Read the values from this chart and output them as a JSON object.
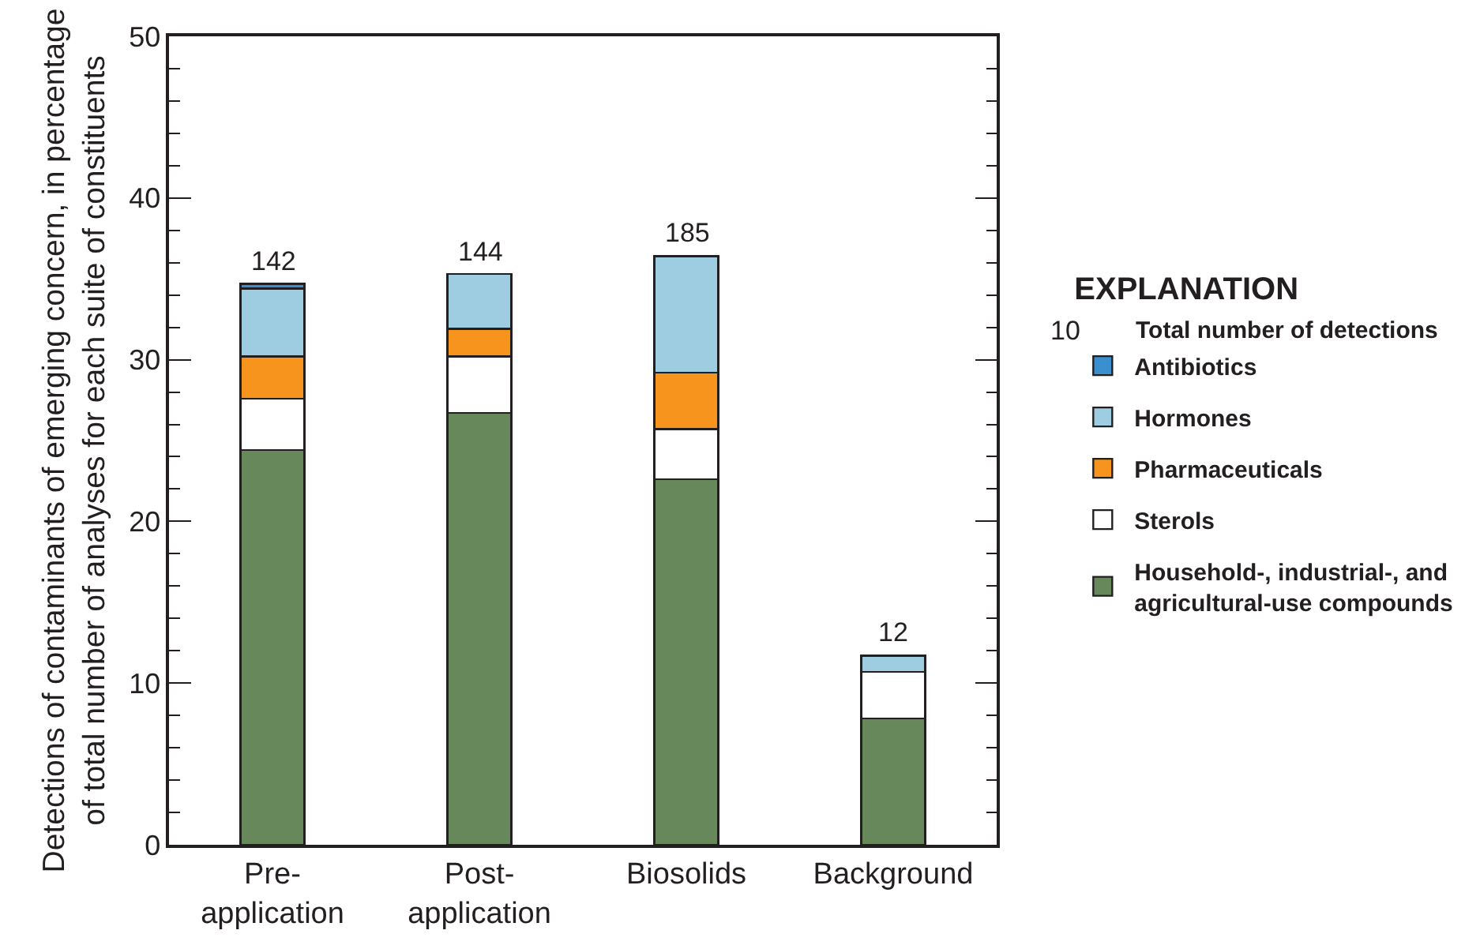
{
  "chart_data": {
    "type": "bar",
    "stacked": true,
    "categories": [
      "Pre-application",
      "Post-application",
      "Biosolids",
      "Background"
    ],
    "series": [
      {
        "name": "Household-, industrial-, and agricultural-use compounds",
        "color": "#66885a",
        "values": [
          24.4,
          26.7,
          22.6,
          7.8
        ]
      },
      {
        "name": "Sterols",
        "color": "#ffffff",
        "values": [
          3.2,
          3.5,
          3.1,
          2.9
        ]
      },
      {
        "name": "Pharmaceuticals",
        "color": "#f7941d",
        "values": [
          2.6,
          1.7,
          3.5,
          null
        ]
      },
      {
        "name": "Hormones",
        "color": "#9ecce0",
        "values": [
          4.2,
          3.4,
          7.2,
          1.0
        ]
      },
      {
        "name": "Antibiotics",
        "color": "#3a8fce",
        "values": [
          0.3,
          null,
          null,
          null
        ]
      }
    ],
    "ylabel": "Detections of contaminants of emerging concern, in percentage of total number of analyses for each suite of constituents",
    "legend_title": "EXPLANATION",
    "annotations": [
      "10",
      "Total number of detections",
      {
        "text": "142",
        "x": "Pre-application",
        "y": 34.7
      },
      {
        "text": "144",
        "x": "Post-application",
        "y": 35.3
      },
      {
        "text": "185",
        "x": "Biosolids",
        "y": 36.4
      },
      {
        "text": "12",
        "x": "Background",
        "y": 11.7
      }
    ],
    "ylim": [
      0,
      50
    ],
    "yticks": [
      0,
      {
        "value": 2,
        "label": null
      },
      {
        "value": 4,
        "label": null
      },
      {
        "value": 6,
        "label": null
      },
      {
        "value": 8,
        "label": null
      },
      10,
      {
        "value": 12,
        "label": null
      },
      {
        "value": 14,
        "label": null
      },
      {
        "value": 16,
        "label": null
      },
      {
        "value": 18,
        "label": null
      },
      20,
      {
        "value": 22,
        "label": null
      },
      {
        "value": 24,
        "label": null
      },
      {
        "value": 26,
        "label": null
      },
      {
        "value": 28,
        "label": null
      },
      30,
      {
        "value": 32,
        "label": null
      },
      {
        "value": 34,
        "label": null
      },
      {
        "value": 36,
        "label": null
      },
      {
        "value": 38,
        "label": null
      },
      40,
      {
        "value": 42,
        "label": null
      },
      {
        "value": 44,
        "label": null
      },
      {
        "value": 46,
        "label": null
      },
      {
        "value": 48,
        "label": null
      },
      50
    ],
    "legend": "right"
  }
}
